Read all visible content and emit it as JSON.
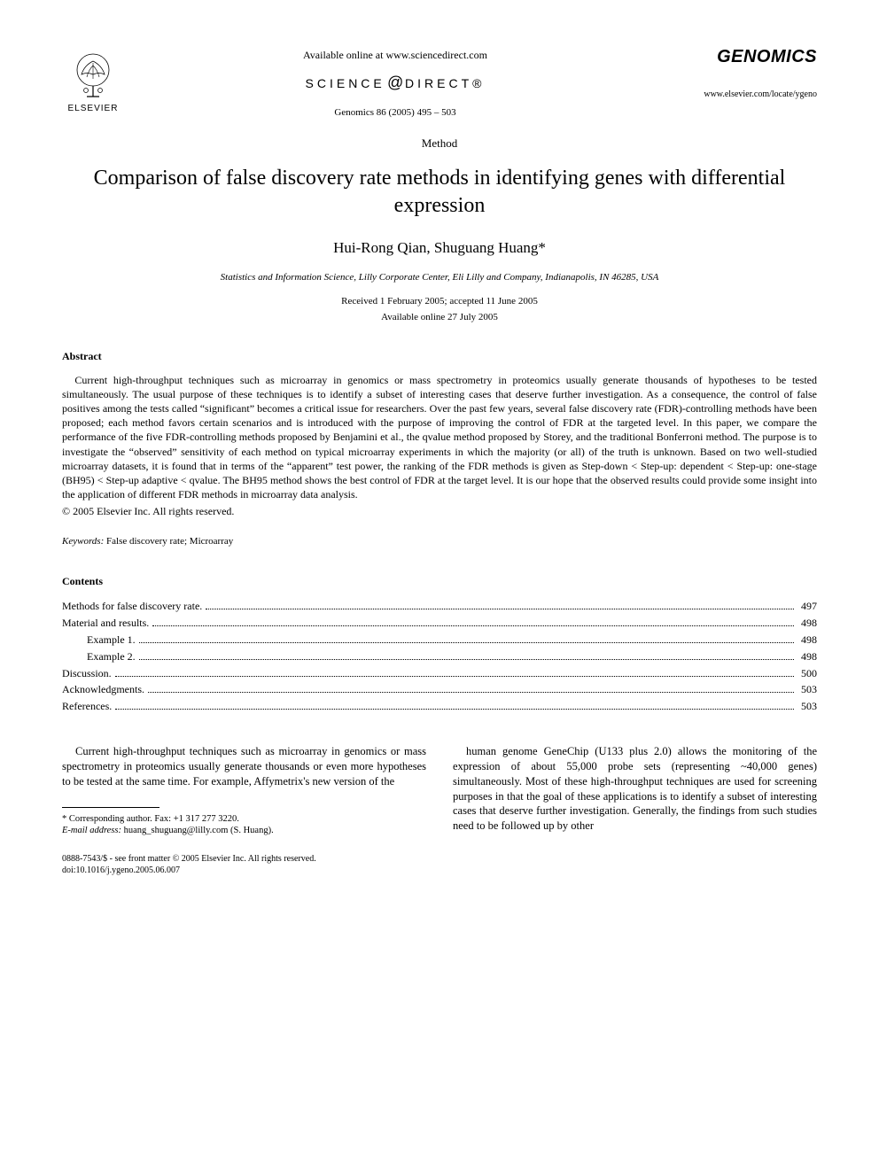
{
  "header": {
    "publisher_name": "ELSEVIER",
    "available_text": "Available online at www.sciencedirect.com",
    "sciencedirect_prefix": "SCIENCE",
    "sciencedirect_at": "@",
    "sciencedirect_suffix": "DIRECT®",
    "citation": "Genomics 86 (2005) 495 – 503",
    "journal_title": "GENOMICS",
    "journal_url": "www.elsevier.com/locate/ygeno"
  },
  "article": {
    "type": "Method",
    "title": "Comparison of false discovery rate methods in identifying genes with differential expression",
    "authors": "Hui-Rong Qian, Shuguang Huang*",
    "affiliation": "Statistics and Information Science, Lilly Corporate Center, Eli Lilly and Company, Indianapolis, IN 46285, USA",
    "dates_line1": "Received 1 February 2005; accepted 11 June 2005",
    "dates_line2": "Available online 27 July 2005"
  },
  "abstract": {
    "heading": "Abstract",
    "text": "Current high-throughput techniques such as microarray in genomics or mass spectrometry in proteomics usually generate thousands of hypotheses to be tested simultaneously. The usual purpose of these techniques is to identify a subset of interesting cases that deserve further investigation. As a consequence, the control of false positives among the tests called “significant” becomes a critical issue for researchers. Over the past few years, several false discovery rate (FDR)-controlling methods have been proposed; each method favors certain scenarios and is introduced with the purpose of improving the control of FDR at the targeted level. In this paper, we compare the performance of the five FDR-controlling methods proposed by Benjamini et al., the qvalue method proposed by Storey, and the traditional Bonferroni method. The purpose is to investigate the “observed” sensitivity of each method on typical microarray experiments in which the majority (or all) of the truth is unknown. Based on two well-studied microarray datasets, it is found that in terms of the “apparent” test power, the ranking of the FDR methods is given as Step-down < Step-up: dependent < Step-up: one-stage (BH95) < Step-up adaptive < qvalue. The BH95 method shows the best control of FDR at the target level. It is our hope that the observed results could provide some insight into the application of different FDR methods in microarray data analysis.",
    "copyright": "© 2005 Elsevier Inc. All rights reserved."
  },
  "keywords": {
    "label": "Keywords:",
    "text": " False discovery rate; Microarray"
  },
  "contents": {
    "heading": "Contents",
    "items": [
      {
        "label": "Methods for false discovery rate",
        "page": "497",
        "indent": 0
      },
      {
        "label": "Material and results",
        "page": "498",
        "indent": 0
      },
      {
        "label": "Example 1",
        "page": "498",
        "indent": 1
      },
      {
        "label": "Example 2",
        "page": "498",
        "indent": 1
      },
      {
        "label": "Discussion",
        "page": "500",
        "indent": 0
      },
      {
        "label": "Acknowledgments",
        "page": "503",
        "indent": 0
      },
      {
        "label": "References",
        "page": "503",
        "indent": 0
      }
    ]
  },
  "body": {
    "col1": "Current high-throughput techniques such as microarray in genomics or mass spectrometry in proteomics usually generate thousands or even more hypotheses to be tested at the same time. For example, Affymetrix's new version of the",
    "col2": "human genome GeneChip (U133 plus 2.0) allows the monitoring of the expression of about 55,000 probe sets (representing ~40,000 genes) simultaneously. Most of these high-throughput techniques are used for screening purposes in that the goal of these applications is to identify a subset of interesting cases that deserve further investigation. Generally, the findings from such studies need to be followed up by other"
  },
  "footnote": {
    "corresponding": "* Corresponding author. Fax: +1 317 277 3220.",
    "email_label": "E-mail address:",
    "email_value": " huang_shuguang@lilly.com (S. Huang)."
  },
  "bottom": {
    "line1": "0888-7543/$ - see front matter © 2005 Elsevier Inc. All rights reserved.",
    "line2": "doi:10.1016/j.ygeno.2005.06.007"
  },
  "colors": {
    "text": "#000000",
    "background": "#ffffff"
  }
}
